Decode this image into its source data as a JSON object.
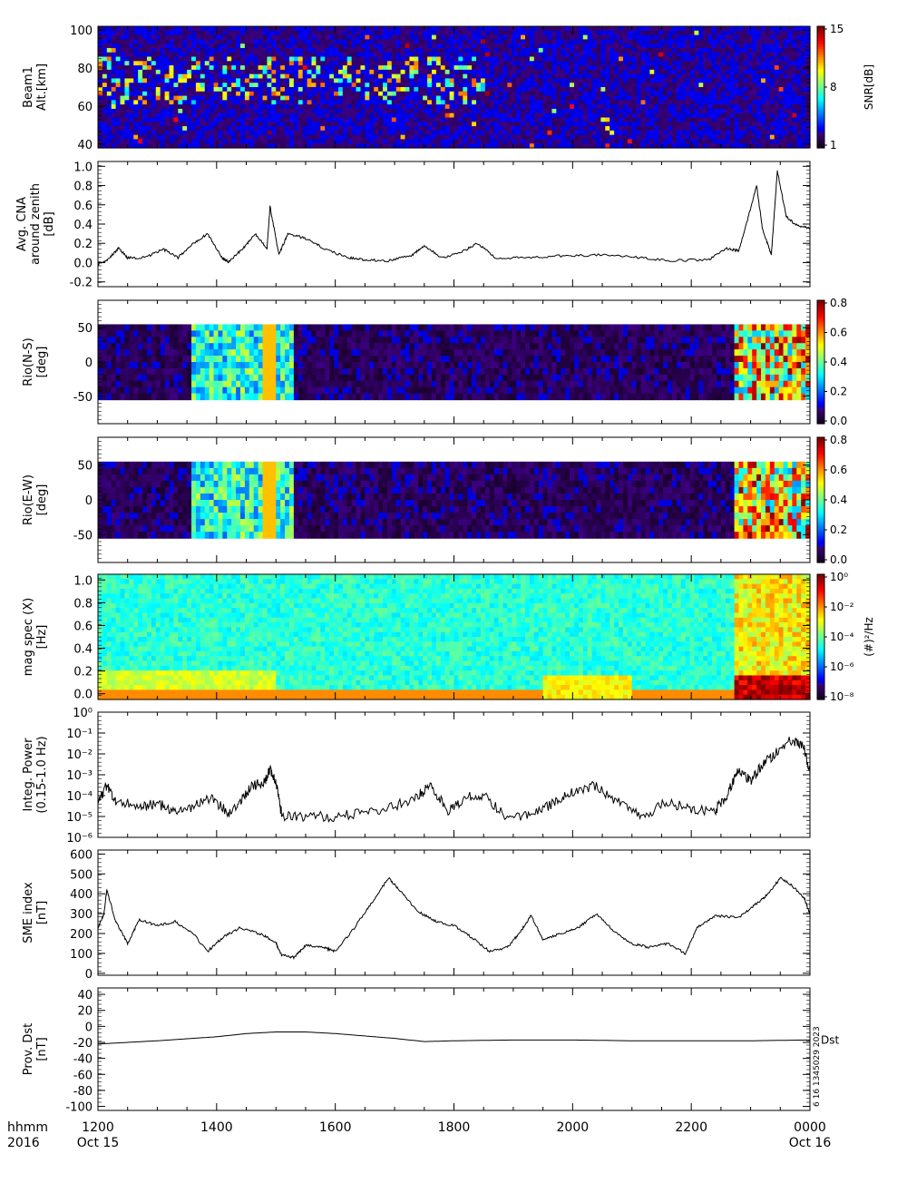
{
  "chart_data": [
    {
      "type": "heatmap",
      "ylabel": [
        "Beam1",
        "Alt.[km]"
      ],
      "ylim": [
        38,
        102
      ],
      "yticks": [
        40,
        60,
        80,
        100
      ],
      "colorbar": {
        "label": "SNR[dB]",
        "ticks": [
          "1",
          "8",
          "15"
        ],
        "min": 1,
        "max": 15
      }
    },
    {
      "type": "line",
      "ylabel": [
        "Avg. CNA",
        "around zenith",
        "[dB]"
      ],
      "ylim": [
        -0.25,
        1.05
      ],
      "yticks": [
        "-0.2",
        "0.0",
        "0.2",
        "0.4",
        "0.6",
        "0.8",
        "1.0"
      ],
      "series_points": [
        [
          12.0,
          -0.02
        ],
        [
          12.2,
          0.05
        ],
        [
          12.35,
          0.15
        ],
        [
          12.5,
          0.05
        ],
        [
          12.8,
          0.05
        ],
        [
          13.1,
          0.14
        ],
        [
          13.35,
          0.05
        ],
        [
          13.6,
          0.2
        ],
        [
          13.85,
          0.3
        ],
        [
          14.1,
          0.04
        ],
        [
          14.2,
          0.01
        ],
        [
          14.45,
          0.15
        ],
        [
          14.65,
          0.3
        ],
        [
          14.85,
          0.15
        ],
        [
          14.9,
          0.58
        ],
        [
          15.05,
          0.08
        ],
        [
          15.2,
          0.3
        ],
        [
          15.5,
          0.25
        ],
        [
          15.8,
          0.15
        ],
        [
          16.2,
          0.05
        ],
        [
          16.5,
          0.03
        ],
        [
          16.9,
          0.02
        ],
        [
          17.3,
          0.08
        ],
        [
          17.5,
          0.18
        ],
        [
          17.8,
          0.05
        ],
        [
          18.1,
          0.1
        ],
        [
          18.4,
          0.2
        ],
        [
          18.7,
          0.05
        ],
        [
          19.2,
          0.05
        ],
        [
          19.8,
          0.07
        ],
        [
          20.4,
          0.08
        ],
        [
          21.0,
          0.06
        ],
        [
          21.6,
          0.02
        ],
        [
          22.3,
          0.03
        ],
        [
          22.6,
          0.15
        ],
        [
          22.8,
          0.12
        ],
        [
          22.95,
          0.45
        ],
        [
          23.1,
          0.8
        ],
        [
          23.2,
          0.35
        ],
        [
          23.35,
          0.08
        ],
        [
          23.45,
          0.95
        ],
        [
          23.6,
          0.48
        ],
        [
          23.75,
          0.4
        ],
        [
          24.0,
          0.35
        ]
      ]
    },
    {
      "type": "heatmap",
      "ylabel": [
        "Rio(N-S)",
        "[deg]"
      ],
      "ylim": [
        -90,
        90
      ],
      "yticks": [
        -50,
        0,
        50
      ],
      "colorbar": {
        "ticks": [
          "0.0",
          "0.2",
          "0.4",
          "0.6",
          "0.8"
        ],
        "min": 0,
        "max": 0.8
      }
    },
    {
      "type": "heatmap",
      "ylabel": [
        "Rio(E-W)",
        "[deg]"
      ],
      "ylim": [
        -90,
        90
      ],
      "yticks": [
        -50,
        0,
        50
      ],
      "colorbar": {
        "ticks": [
          "0.0",
          "0.2",
          "0.4",
          "0.6",
          "0.8"
        ],
        "min": 0,
        "max": 0.8
      }
    },
    {
      "type": "heatmap",
      "ylabel": [
        "mag spec (X)",
        "[Hz]"
      ],
      "ylim": [
        -0.05,
        1.05
      ],
      "yticks": [
        "0.0",
        "0.2",
        "0.4",
        "0.6",
        "0.8",
        "1.0"
      ],
      "colorbar": {
        "label": "(#)²/Hz",
        "ticks": [
          "10⁻⁸",
          "10⁻⁶",
          "10⁻⁴",
          "10⁻²",
          "10⁰"
        ],
        "log": true
      }
    },
    {
      "type": "line",
      "ylabel": [
        "Integ. Power",
        "(0.15-1.0 Hz)"
      ],
      "yscale": "log",
      "ylim": [
        1e-06,
        1
      ],
      "yticks": [
        "10⁻⁶",
        "10⁻⁵",
        "10⁻⁴",
        "10⁻³",
        "10⁻²",
        "10⁻¹",
        "10⁰"
      ],
      "series_points": [
        [
          12.0,
          5e-05
        ],
        [
          12.15,
          0.0003
        ],
        [
          12.3,
          6e-05
        ],
        [
          12.7,
          3e-05
        ],
        [
          13.0,
          4e-05
        ],
        [
          13.3,
          2e-05
        ],
        [
          13.6,
          3e-05
        ],
        [
          13.9,
          8e-05
        ],
        [
          14.2,
          1.5e-05
        ],
        [
          14.4,
          6e-05
        ],
        [
          14.6,
          0.0003
        ],
        [
          14.8,
          0.0004
        ],
        [
          14.9,
          0.002
        ],
        [
          15.0,
          0.0005
        ],
        [
          15.1,
          1e-05
        ],
        [
          15.5,
          1e-05
        ],
        [
          16.0,
          1e-05
        ],
        [
          16.5,
          1.5e-05
        ],
        [
          17.0,
          3e-05
        ],
        [
          17.4,
          0.0001
        ],
        [
          17.6,
          0.0003
        ],
        [
          17.9,
          2e-05
        ],
        [
          18.2,
          8e-05
        ],
        [
          18.5,
          0.0001
        ],
        [
          18.9,
          1e-05
        ],
        [
          19.3,
          1e-05
        ],
        [
          19.7,
          5e-05
        ],
        [
          20.0,
          0.00015
        ],
        [
          20.4,
          0.0003
        ],
        [
          20.8,
          4e-05
        ],
        [
          21.2,
          1e-05
        ],
        [
          21.6,
          5e-05
        ],
        [
          22.0,
          2e-05
        ],
        [
          22.4,
          2e-05
        ],
        [
          22.6,
          0.0001
        ],
        [
          22.8,
          0.002
        ],
        [
          23.0,
          0.0005
        ],
        [
          23.2,
          0.003
        ],
        [
          23.4,
          0.01
        ],
        [
          23.7,
          0.05
        ],
        [
          23.9,
          0.02
        ],
        [
          24.0,
          0.001
        ]
      ]
    },
    {
      "type": "line",
      "ylabel": [
        "SME index",
        "[nT]"
      ],
      "ylim": [
        -10,
        620
      ],
      "yticks": [
        0,
        100,
        200,
        300,
        400,
        500,
        600
      ],
      "series_points": [
        [
          12.0,
          230
        ],
        [
          12.1,
          300
        ],
        [
          12.15,
          420
        ],
        [
          12.3,
          260
        ],
        [
          12.5,
          150
        ],
        [
          12.7,
          270
        ],
        [
          13.0,
          240
        ],
        [
          13.3,
          260
        ],
        [
          13.6,
          200
        ],
        [
          13.85,
          110
        ],
        [
          14.1,
          180
        ],
        [
          14.4,
          230
        ],
        [
          14.8,
          190
        ],
        [
          15.0,
          150
        ],
        [
          15.1,
          90
        ],
        [
          15.3,
          80
        ],
        [
          15.5,
          140
        ],
        [
          15.8,
          130
        ],
        [
          16.0,
          110
        ],
        [
          16.3,
          220
        ],
        [
          16.6,
          350
        ],
        [
          16.9,
          480
        ],
        [
          17.1,
          410
        ],
        [
          17.4,
          310
        ],
        [
          17.7,
          260
        ],
        [
          18.0,
          240
        ],
        [
          18.3,
          180
        ],
        [
          18.6,
          110
        ],
        [
          18.9,
          130
        ],
        [
          19.1,
          200
        ],
        [
          19.3,
          290
        ],
        [
          19.5,
          170
        ],
        [
          19.8,
          200
        ],
        [
          20.1,
          230
        ],
        [
          20.4,
          300
        ],
        [
          20.7,
          210
        ],
        [
          21.0,
          150
        ],
        [
          21.3,
          130
        ],
        [
          21.6,
          150
        ],
        [
          21.9,
          100
        ],
        [
          22.1,
          230
        ],
        [
          22.4,
          290
        ],
        [
          22.8,
          280
        ],
        [
          23.1,
          350
        ],
        [
          23.3,
          400
        ],
        [
          23.5,
          480
        ],
        [
          23.7,
          440
        ],
        [
          23.9,
          380
        ],
        [
          24.0,
          300
        ]
      ]
    },
    {
      "type": "line",
      "ylabel": [
        "Prov. Dst",
        "[nT]"
      ],
      "ylim": [
        -105,
        48
      ],
      "yticks": [
        -100,
        -80,
        -60,
        -40,
        -20,
        0,
        20,
        40
      ],
      "series_points": [
        [
          12.0,
          -22
        ],
        [
          13.0,
          -18
        ],
        [
          14.0,
          -13
        ],
        [
          14.5,
          -9
        ],
        [
          15.0,
          -7
        ],
        [
          15.5,
          -7
        ],
        [
          16.0,
          -9
        ],
        [
          16.5,
          -12
        ],
        [
          17.0,
          -15
        ],
        [
          17.5,
          -19
        ],
        [
          18.0,
          -18
        ],
        [
          19.0,
          -17
        ],
        [
          20.0,
          -17
        ],
        [
          21.0,
          -18
        ],
        [
          22.0,
          -18
        ],
        [
          23.0,
          -18
        ],
        [
          24.0,
          -17
        ]
      ],
      "annotation": "Dst"
    }
  ],
  "x_axis": {
    "range": [
      12,
      24
    ],
    "ticks": [
      {
        "value": 12,
        "label": "1200",
        "date": "Oct 15"
      },
      {
        "value": 14,
        "label": "1400",
        "date": ""
      },
      {
        "value": 16,
        "label": "1600",
        "date": ""
      },
      {
        "value": 18,
        "label": "1800",
        "date": ""
      },
      {
        "value": 20,
        "label": "2000",
        "date": ""
      },
      {
        "value": 22,
        "label": "2200",
        "date": ""
      },
      {
        "value": 24,
        "label": "0000",
        "date": "Oct 16"
      }
    ],
    "label_top": "hhmm",
    "label_bottom": "2016"
  },
  "footer_stamp": "6 16 1345029 2023"
}
